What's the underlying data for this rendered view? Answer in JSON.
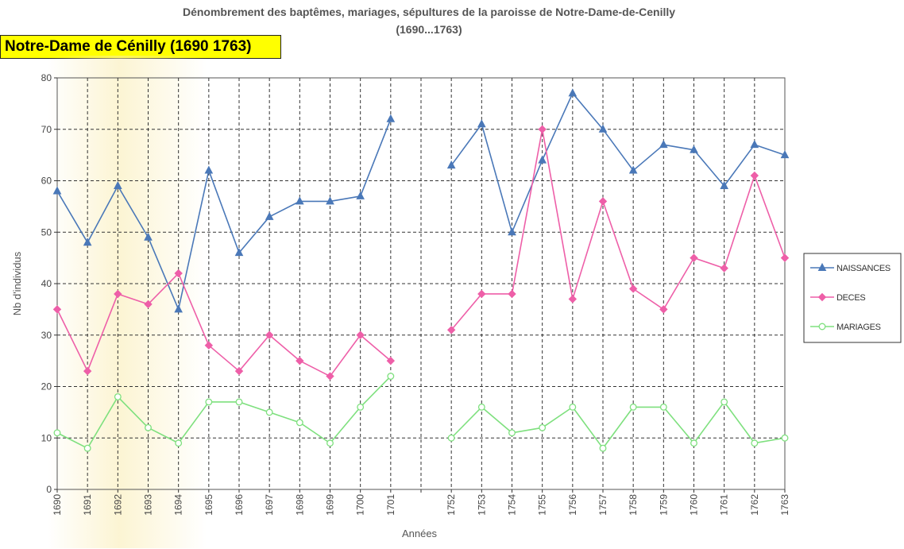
{
  "header": {
    "title_line1": "Dénombrement des baptêmes, mariages, sépultures de la paroisse de Notre-Dame-de-Cenilly",
    "title_line2": "(1690...1763)",
    "badge": "Notre-Dame de Cénilly (1690 1763)"
  },
  "chart_data": {
    "type": "line",
    "categories": [
      "1690",
      "1691",
      "1692",
      "1693",
      "1694",
      "1695",
      "1696",
      "1697",
      "1698",
      "1699",
      "1700",
      "1701",
      "",
      "1752",
      "1753",
      "1754",
      "1755",
      "1756",
      "1757",
      "1758",
      "1759",
      "1760",
      "1761",
      "1762",
      "1763"
    ],
    "xlabel": "Années",
    "ylabel": "Nb d'individus",
    "ylim": [
      0,
      80
    ],
    "yticks": [
      0,
      10,
      20,
      30,
      40,
      50,
      60,
      70,
      80
    ],
    "grid": true,
    "legend_position": "right",
    "series": [
      {
        "name": "NAISSANCES",
        "color": "#4a78b8",
        "marker": "triangle",
        "values": [
          58,
          48,
          59,
          49,
          35,
          62,
          46,
          53,
          56,
          56,
          57,
          72,
          null,
          63,
          71,
          50,
          64,
          77,
          70,
          62,
          67,
          66,
          59,
          67,
          65
        ]
      },
      {
        "name": "DECES",
        "color": "#ee5fa8",
        "marker": "diamond",
        "values": [
          35,
          23,
          38,
          36,
          42,
          28,
          23,
          30,
          25,
          22,
          30,
          25,
          null,
          31,
          38,
          38,
          70,
          37,
          56,
          39,
          35,
          45,
          43,
          61,
          45
        ]
      },
      {
        "name": "MARIAGES",
        "color": "#7ee07e",
        "marker": "circle",
        "values": [
          11,
          8,
          18,
          12,
          9,
          17,
          17,
          15,
          13,
          9,
          16,
          22,
          null,
          10,
          16,
          11,
          12,
          16,
          8,
          16,
          16,
          9,
          17,
          9,
          10
        ]
      }
    ]
  }
}
